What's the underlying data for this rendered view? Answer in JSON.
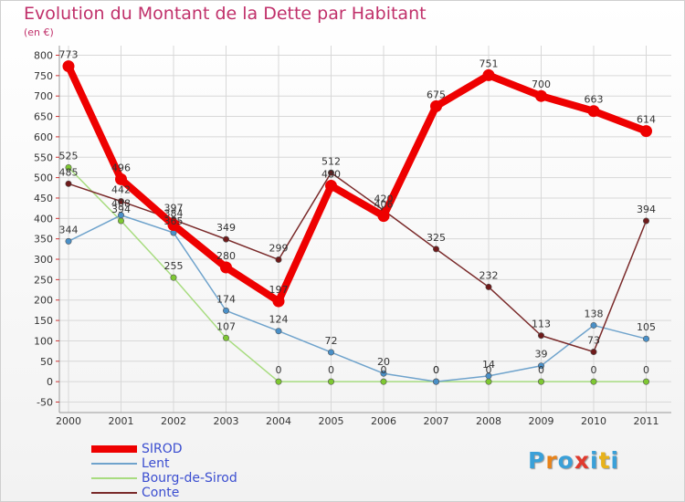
{
  "title": "Evolution du Montant de la Dette par Habitant",
  "subtitle": "(en €)",
  "logo": {
    "text": "Proxiti",
    "letter_colors": [
      "#3aa0d8",
      "#e8831a",
      "#3aa0d8",
      "#e03a2e",
      "#3aa0d8",
      "#e8b21a",
      "#3aa0d8"
    ]
  },
  "chart_data": {
    "type": "line",
    "title": "Evolution du Montant de la Dette par Habitant",
    "ylabel": "(en €)",
    "xlabel": "",
    "ylim": [
      -50,
      800
    ],
    "ytick_step": 50,
    "categories": [
      "2000",
      "2001",
      "2002",
      "2003",
      "2004",
      "2005",
      "2006",
      "2007",
      "2008",
      "2009",
      "2010",
      "2011"
    ],
    "series": [
      {
        "name": "SIROD",
        "color": "#ee0000",
        "marker_color": "#ee0000",
        "values": [
          773,
          496,
          384,
          280,
          197,
          480,
          406,
          675,
          751,
          700,
          663,
          614
        ]
      },
      {
        "name": "Lent",
        "color": "#6fa3cc",
        "marker_color": "#4a90c8",
        "values": [
          344,
          408,
          365,
          174,
          124,
          72,
          20,
          0,
          14,
          39,
          138,
          105
        ]
      },
      {
        "name": "Bourg-de-Sirod",
        "color": "#a8dc80",
        "marker_color": "#7ec832",
        "values": [
          525,
          394,
          255,
          107,
          0,
          0,
          0,
          0,
          0,
          0,
          0,
          0
        ]
      },
      {
        "name": "Conte",
        "color": "#7a2a2a",
        "marker_color": "#6e1a1a",
        "values": [
          485,
          442,
          397,
          349,
          299,
          512,
          420,
          325,
          232,
          113,
          73,
          394
        ]
      }
    ],
    "legend_position": "bottom-left"
  }
}
